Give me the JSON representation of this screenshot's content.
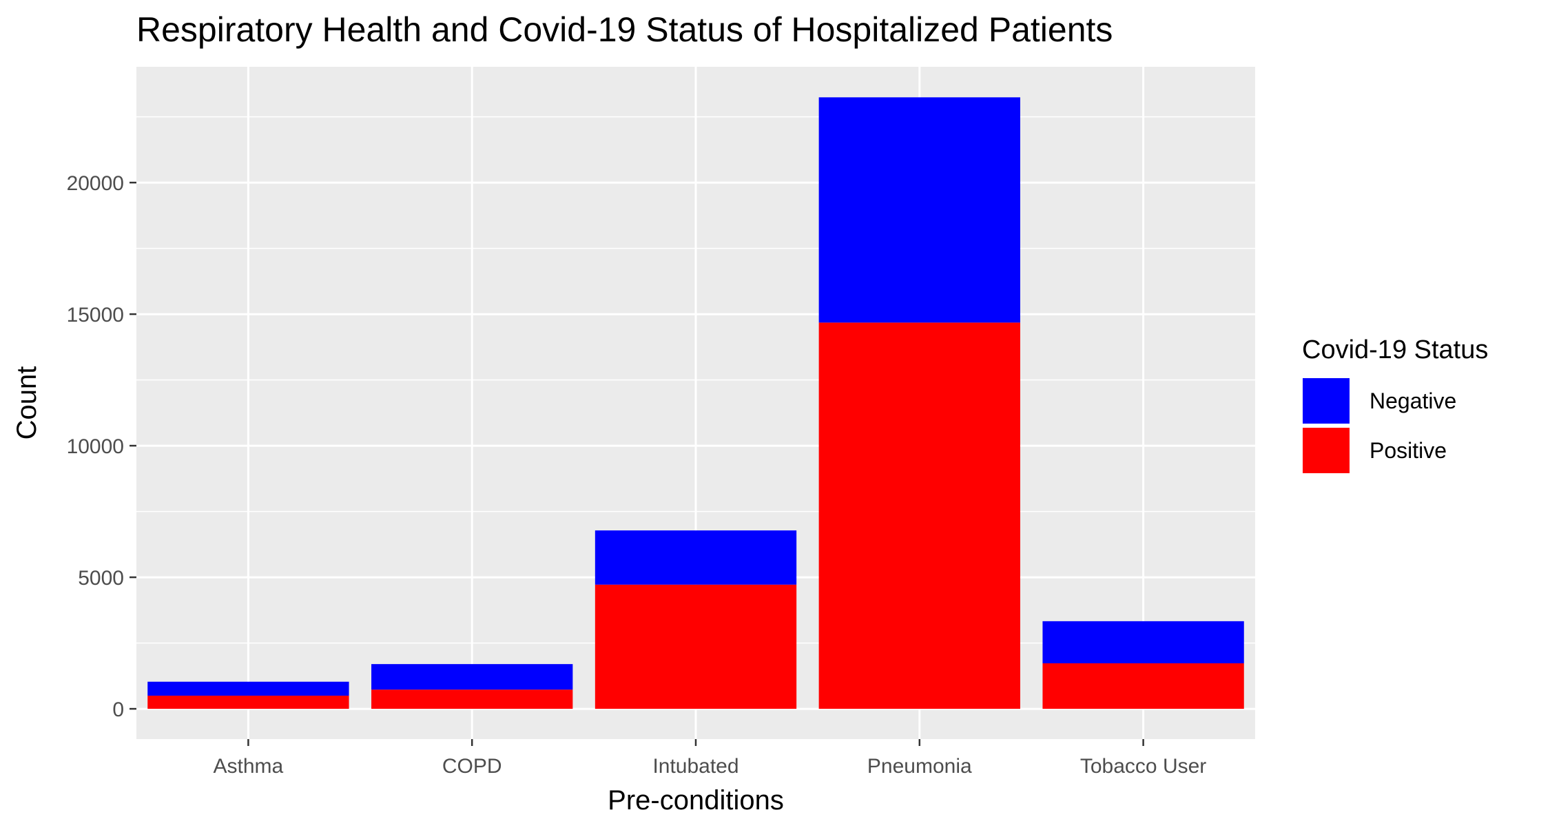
{
  "chart_data": {
    "type": "bar",
    "stacked": true,
    "title": "Respiratory Health and Covid-19 Status of Hospitalized Patients",
    "xlabel": "Pre-conditions",
    "ylabel": "Count",
    "categories": [
      "Asthma",
      "COPD",
      "Intubated",
      "Pneumonia",
      "Tobacco User"
    ],
    "series": [
      {
        "name": "Positive",
        "color": "#ff0000",
        "values": [
          500,
          730,
          4720,
          14680,
          1730
        ]
      },
      {
        "name": "Negative",
        "color": "#0000ff",
        "values": [
          530,
          970,
          2060,
          8560,
          1600
        ]
      }
    ],
    "ylim": [
      -1150,
      24400
    ],
    "yticks": [
      0,
      5000,
      10000,
      15000,
      20000
    ],
    "ytick_labels": [
      "0",
      "5000",
      "10000",
      "15000",
      "20000"
    ],
    "grid": true,
    "legend": {
      "title": "Covid-19 Status",
      "placement": "right",
      "entries": [
        {
          "label": "Negative",
          "color": "#0000ff"
        },
        {
          "label": "Positive",
          "color": "#ff0000"
        }
      ]
    },
    "panel_background": "#ebebeb",
    "gridline_color": "#ffffff"
  }
}
